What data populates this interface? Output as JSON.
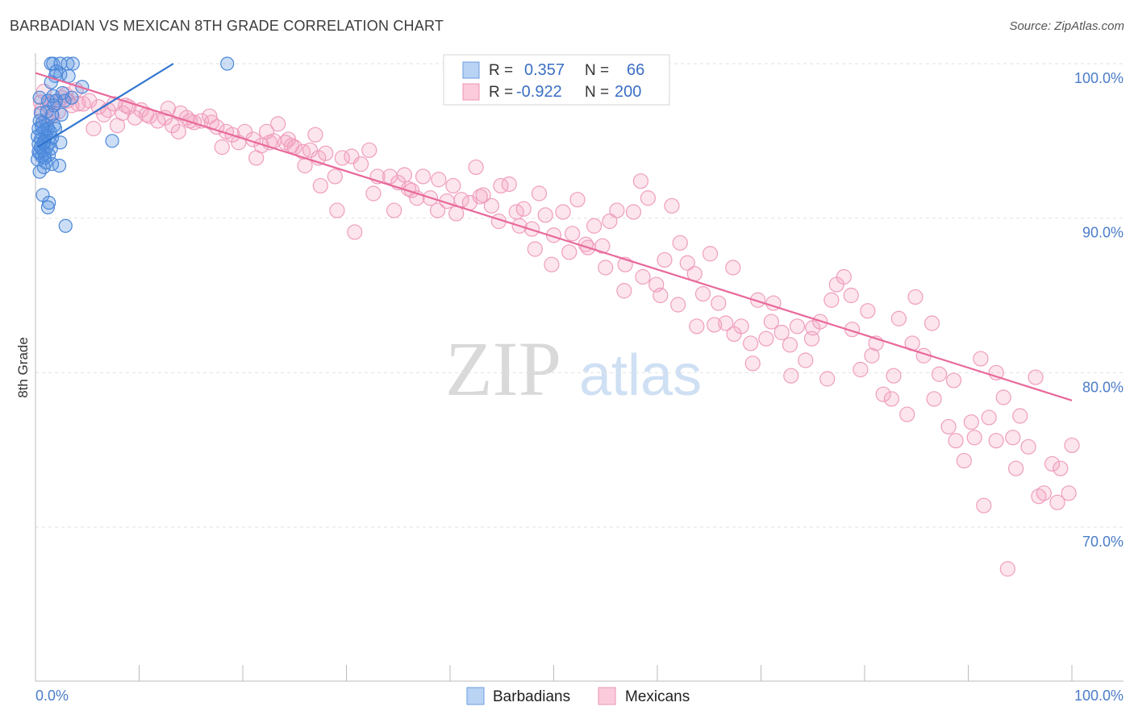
{
  "title": "BARBADIAN VS MEXICAN 8TH GRADE CORRELATION CHART",
  "source": "Source: ZipAtlas.com",
  "colors": {
    "barbadian": "#4a86d8",
    "mexican": "#f08cb0",
    "barbadian_line": "#2f74d0",
    "mexican_line": "#e8689a",
    "tick_text": "#4a7cc9"
  },
  "legend": {
    "rows": [
      {
        "r_label": "R =",
        "r_value": "0.357",
        "n_label": "N =",
        "n_value": "66"
      },
      {
        "r_label": "R =",
        "r_value": "-0.922",
        "n_label": "N =",
        "n_value": "200"
      }
    ]
  },
  "bottom_legend": [
    "Barbadians",
    "Mexicans"
  ],
  "chart_data": {
    "type": "scatter",
    "title": "BARBADIAN VS MEXICAN 8TH GRADE CORRELATION CHART",
    "xlabel": "",
    "ylabel": "8th Grade",
    "xlim": [
      0,
      100
    ],
    "ylim": [
      60,
      100
    ],
    "x_tick_labels": [
      "0.0%",
      "100.0%"
    ],
    "y_ticks": [
      70,
      80,
      90,
      100
    ],
    "y_tick_labels": [
      "70.0%",
      "80.0%",
      "90.0%",
      "100.0%"
    ],
    "grid": "horizontal dashed",
    "watermark": [
      "ZIP",
      "atlas"
    ],
    "series": [
      {
        "name": "Barbadians",
        "r": 0.357,
        "n": 66,
        "trend": {
          "x": [
            0.2,
            13.3
          ],
          "y": [
            94.6,
            100
          ]
        },
        "points": [
          [
            1.5,
            100
          ],
          [
            1.7,
            100
          ],
          [
            2.4,
            100
          ],
          [
            3.1,
            100
          ],
          [
            3.6,
            100
          ],
          [
            18.5,
            100
          ],
          [
            2.0,
            99.5
          ],
          [
            2.4,
            99.3
          ],
          [
            1.9,
            99.2
          ],
          [
            3.2,
            99.2
          ],
          [
            1.5,
            98.8
          ],
          [
            4.5,
            98.5
          ],
          [
            0.4,
            97.8
          ],
          [
            1.2,
            97.6
          ],
          [
            2.0,
            97.6
          ],
          [
            2.8,
            97.6
          ],
          [
            3.5,
            97.8
          ],
          [
            1.8,
            97.3
          ],
          [
            0.5,
            96.8
          ],
          [
            1.6,
            96.7
          ],
          [
            0.7,
            96.2
          ],
          [
            1.1,
            96.0
          ],
          [
            1.8,
            96.0
          ],
          [
            0.3,
            95.8
          ],
          [
            0.9,
            95.7
          ],
          [
            1.4,
            95.6
          ],
          [
            0.6,
            95.5
          ],
          [
            1.0,
            95.3
          ],
          [
            1.6,
            95.2
          ],
          [
            0.5,
            95.1
          ],
          [
            0.9,
            95.0
          ],
          [
            1.4,
            94.9
          ],
          [
            0.3,
            94.8
          ],
          [
            0.8,
            94.8
          ],
          [
            2.4,
            94.9
          ],
          [
            0.5,
            94.6
          ],
          [
            1.1,
            94.6
          ],
          [
            0.7,
            94.4
          ],
          [
            0.4,
            94.2
          ],
          [
            0.9,
            94.2
          ],
          [
            1.3,
            94.1
          ],
          [
            0.6,
            94.0
          ],
          [
            0.2,
            93.8
          ],
          [
            1.0,
            93.6
          ],
          [
            1.6,
            93.5
          ],
          [
            0.8,
            93.3
          ],
          [
            2.3,
            93.4
          ],
          [
            0.4,
            93.0
          ],
          [
            1.2,
            95.8
          ],
          [
            0.2,
            95.3
          ],
          [
            7.4,
            95.0
          ],
          [
            0.7,
            91.5
          ],
          [
            1.3,
            91.0
          ],
          [
            1.2,
            90.7
          ],
          [
            2.9,
            89.5
          ],
          [
            0.4,
            96.3
          ],
          [
            1.9,
            95.8
          ],
          [
            2.5,
            96.7
          ],
          [
            0.8,
            94.9
          ],
          [
            1.5,
            94.5
          ],
          [
            0.3,
            94.3
          ],
          [
            0.6,
            95.9
          ],
          [
            1.1,
            96.9
          ],
          [
            2.6,
            98.1
          ],
          [
            0.9,
            93.9
          ],
          [
            1.7,
            97.9
          ]
        ]
      },
      {
        "name": "Mexicans",
        "r": -0.922,
        "n": 200,
        "trend": {
          "x": [
            0,
            100
          ],
          "y": [
            99.4,
            78.2
          ]
        },
        "points": [
          [
            0.5,
            97.5
          ],
          [
            1.2,
            97.3
          ],
          [
            1.8,
            97.5
          ],
          [
            2.5,
            97.8
          ],
          [
            3.5,
            97.3
          ],
          [
            0.6,
            97.0
          ],
          [
            2.2,
            96.9
          ],
          [
            3.1,
            97.6
          ],
          [
            4.1,
            97.4
          ],
          [
            5.2,
            97.6
          ],
          [
            6.1,
            97.2
          ],
          [
            7.0,
            97.0
          ],
          [
            7.6,
            97.4
          ],
          [
            8.4,
            96.8
          ],
          [
            9.0,
            97.2
          ],
          [
            9.6,
            96.5
          ],
          [
            10.2,
            97.0
          ],
          [
            11.0,
            96.6
          ],
          [
            11.8,
            96.3
          ],
          [
            12.5,
            96.5
          ],
          [
            13.2,
            96.0
          ],
          [
            14.0,
            96.8
          ],
          [
            14.6,
            96.5
          ],
          [
            15.3,
            96.2
          ],
          [
            16.0,
            96.3
          ],
          [
            16.8,
            96.6
          ],
          [
            17.5,
            95.9
          ],
          [
            18.4,
            95.6
          ],
          [
            19.0,
            95.4
          ],
          [
            20.2,
            95.6
          ],
          [
            21.0,
            95.1
          ],
          [
            21.8,
            94.7
          ],
          [
            22.6,
            94.9
          ],
          [
            23.4,
            96.1
          ],
          [
            24.1,
            94.9
          ],
          [
            25.0,
            94.6
          ],
          [
            25.8,
            94.3
          ],
          [
            26.5,
            94.4
          ],
          [
            27.3,
            93.9
          ],
          [
            28.0,
            94.2
          ],
          [
            28.9,
            92.7
          ],
          [
            29.6,
            93.9
          ],
          [
            30.5,
            94.0
          ],
          [
            31.4,
            93.5
          ],
          [
            32.2,
            94.4
          ],
          [
            33.0,
            92.7
          ],
          [
            34.2,
            92.7
          ],
          [
            35.0,
            92.3
          ],
          [
            35.6,
            92.8
          ],
          [
            36.3,
            91.8
          ],
          [
            37.4,
            92.7
          ],
          [
            38.1,
            91.3
          ],
          [
            38.9,
            92.5
          ],
          [
            39.7,
            91.1
          ],
          [
            40.3,
            92.1
          ],
          [
            41.1,
            91.2
          ],
          [
            41.9,
            91.0
          ],
          [
            42.5,
            93.3
          ],
          [
            43.2,
            91.5
          ],
          [
            44.0,
            90.8
          ],
          [
            44.9,
            92.1
          ],
          [
            45.7,
            92.2
          ],
          [
            46.4,
            90.4
          ],
          [
            47.1,
            90.6
          ],
          [
            47.9,
            89.3
          ],
          [
            48.6,
            91.6
          ],
          [
            49.2,
            90.2
          ],
          [
            50.0,
            88.9
          ],
          [
            50.9,
            90.4
          ],
          [
            51.8,
            89.0
          ],
          [
            52.3,
            91.2
          ],
          [
            53.1,
            88.3
          ],
          [
            53.9,
            89.5
          ],
          [
            54.7,
            88.2
          ],
          [
            55.4,
            89.8
          ],
          [
            56.1,
            90.5
          ],
          [
            56.9,
            87.0
          ],
          [
            57.7,
            90.4
          ],
          [
            58.4,
            92.4
          ],
          [
            59.1,
            91.3
          ],
          [
            59.9,
            85.7
          ],
          [
            60.7,
            87.3
          ],
          [
            61.4,
            90.8
          ],
          [
            62.2,
            88.4
          ],
          [
            62.9,
            87.1
          ],
          [
            63.6,
            86.4
          ],
          [
            64.4,
            85.1
          ],
          [
            65.1,
            87.7
          ],
          [
            65.9,
            84.5
          ],
          [
            66.6,
            83.2
          ],
          [
            67.3,
            86.8
          ],
          [
            68.1,
            83.0
          ],
          [
            69.0,
            81.9
          ],
          [
            69.7,
            84.7
          ],
          [
            70.5,
            82.2
          ],
          [
            71.2,
            84.5
          ],
          [
            72.0,
            82.6
          ],
          [
            72.8,
            81.8
          ],
          [
            73.5,
            83.0
          ],
          [
            74.3,
            80.8
          ],
          [
            75.0,
            82.9
          ],
          [
            75.7,
            83.3
          ],
          [
            76.4,
            79.6
          ],
          [
            77.3,
            85.7
          ],
          [
            78.0,
            86.2
          ],
          [
            78.8,
            82.8
          ],
          [
            79.6,
            80.2
          ],
          [
            80.3,
            84.0
          ],
          [
            81.1,
            81.9
          ],
          [
            81.8,
            78.6
          ],
          [
            82.6,
            78.3
          ],
          [
            83.3,
            83.5
          ],
          [
            84.1,
            77.3
          ],
          [
            84.9,
            84.9
          ],
          [
            85.7,
            81.1
          ],
          [
            86.5,
            83.2
          ],
          [
            87.2,
            79.9
          ],
          [
            88.1,
            76.5
          ],
          [
            88.8,
            75.6
          ],
          [
            89.6,
            74.3
          ],
          [
            90.3,
            76.8
          ],
          [
            91.2,
            80.9
          ],
          [
            92.0,
            77.1
          ],
          [
            92.7,
            80.0
          ],
          [
            93.4,
            78.4
          ],
          [
            94.3,
            75.8
          ],
          [
            95.0,
            77.2
          ],
          [
            95.8,
            75.2
          ],
          [
            96.5,
            79.7
          ],
          [
            97.3,
            72.2
          ],
          [
            98.1,
            74.1
          ],
          [
            98.9,
            73.8
          ],
          [
            99.7,
            72.2
          ],
          [
            1.0,
            96.3
          ],
          [
            4.6,
            97.4
          ],
          [
            6.6,
            96.7
          ],
          [
            8.7,
            97.3
          ],
          [
            10.7,
            96.7
          ],
          [
            12.8,
            97.1
          ],
          [
            14.9,
            96.3
          ],
          [
            17.0,
            96.2
          ],
          [
            19.6,
            94.9
          ],
          [
            21.3,
            93.9
          ],
          [
            23.0,
            95.0
          ],
          [
            24.7,
            94.7
          ],
          [
            26.0,
            93.4
          ],
          [
            27.5,
            92.1
          ],
          [
            29.1,
            90.5
          ],
          [
            30.8,
            89.1
          ],
          [
            32.6,
            91.6
          ],
          [
            34.6,
            90.5
          ],
          [
            36.8,
            91.3
          ],
          [
            38.8,
            90.5
          ],
          [
            40.6,
            90.3
          ],
          [
            42.9,
            91.4
          ],
          [
            44.7,
            89.8
          ],
          [
            46.7,
            89.5
          ],
          [
            48.2,
            88.0
          ],
          [
            49.8,
            87.0
          ],
          [
            51.5,
            87.8
          ],
          [
            53.3,
            88.1
          ],
          [
            55.0,
            86.8
          ],
          [
            56.8,
            85.3
          ],
          [
            58.6,
            86.2
          ],
          [
            60.3,
            85.0
          ],
          [
            62.0,
            84.4
          ],
          [
            63.8,
            83.0
          ],
          [
            65.5,
            83.1
          ],
          [
            67.4,
            82.5
          ],
          [
            69.2,
            80.6
          ],
          [
            71.0,
            83.3
          ],
          [
            72.9,
            79.8
          ],
          [
            74.9,
            82.2
          ],
          [
            76.8,
            84.7
          ],
          [
            78.7,
            85.0
          ],
          [
            80.7,
            81.1
          ],
          [
            82.8,
            79.8
          ],
          [
            84.6,
            81.9
          ],
          [
            86.7,
            78.3
          ],
          [
            88.6,
            79.5
          ],
          [
            90.6,
            75.8
          ],
          [
            92.7,
            75.6
          ],
          [
            94.6,
            73.8
          ],
          [
            96.8,
            72.0
          ],
          [
            98.6,
            71.6
          ],
          [
            100.0,
            75.3
          ],
          [
            91.5,
            71.4
          ],
          [
            93.8,
            67.3
          ],
          [
            0.8,
            98.2
          ],
          [
            2.9,
            98.0
          ],
          [
            1.6,
            96.6
          ],
          [
            3.9,
            98.3
          ],
          [
            5.6,
            95.8
          ],
          [
            7.9,
            96.0
          ],
          [
            13.8,
            95.6
          ],
          [
            18.0,
            94.6
          ],
          [
            22.3,
            95.6
          ],
          [
            24.4,
            95.1
          ],
          [
            27.0,
            95.4
          ],
          [
            36.0,
            91.9
          ]
        ]
      }
    ]
  }
}
